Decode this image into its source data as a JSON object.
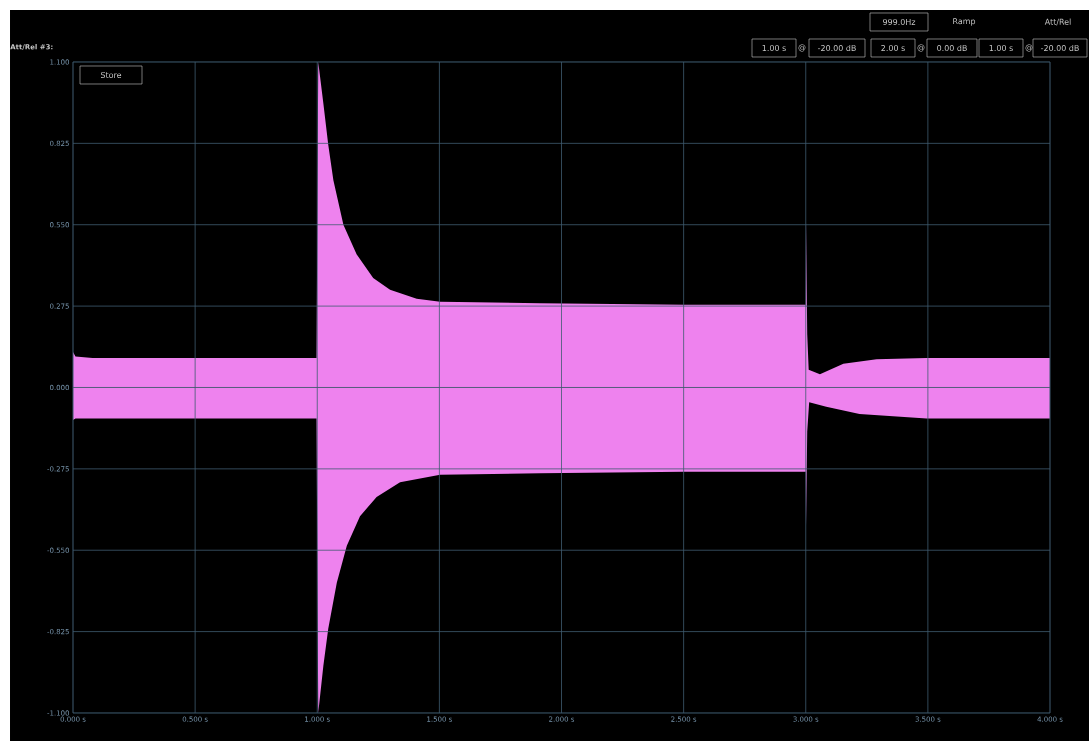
{
  "chart_data": {
    "type": "area",
    "series": [
      {
        "color": "#ee82ee",
        "x": [
          0,
          0.01,
          0.08,
          0.997,
          1.004,
          1.025,
          1.045,
          1.066,
          1.107,
          1.161,
          1.229,
          1.298,
          1.407,
          1.503,
          1.912,
          2.5,
          3.0,
          3.001,
          3.006,
          3.012,
          3.058,
          3.154,
          3.29,
          3.495,
          4.0
        ],
        "values": [
          0.12,
          0.105,
          0.1,
          0.1,
          1.1,
          0.96,
          0.82,
          0.7,
          0.55,
          0.45,
          0.37,
          0.33,
          0.3,
          0.29,
          0.285,
          0.28,
          0.28,
          0.56,
          0.18,
          0.06,
          0.045,
          0.08,
          0.095,
          0.1,
          0.1
        ]
      },
      {
        "color": "#ee82ee",
        "x": [
          0,
          0.01,
          0.997,
          1.004,
          1.025,
          1.045,
          1.08,
          1.121,
          1.175,
          1.243,
          1.339,
          1.503,
          1.912,
          2.5,
          3.0,
          3.001,
          3.006,
          3.014,
          3.084,
          3.22,
          3.495,
          4.0
        ],
        "values": [
          -0.11,
          -0.105,
          -0.105,
          -1.1,
          -0.94,
          -0.815,
          -0.66,
          -0.535,
          -0.435,
          -0.37,
          -0.32,
          -0.295,
          -0.29,
          -0.285,
          -0.285,
          -0.47,
          -0.15,
          -0.05,
          -0.065,
          -0.09,
          -0.105,
          -0.105
        ]
      }
    ],
    "xlim": [
      0,
      4.0
    ],
    "ylim": [
      -1.1,
      1.1
    ],
    "xticks": [
      {
        "value": 0,
        "label": "0.000 s"
      },
      {
        "value": 0.5,
        "label": "0.500 s"
      },
      {
        "value": 1.0,
        "label": "1.000 s"
      },
      {
        "value": 1.5,
        "label": "1.500 s"
      },
      {
        "value": 2.0,
        "label": "2.000 s"
      },
      {
        "value": 2.5,
        "label": "2.500 s"
      },
      {
        "value": 3.0,
        "label": "3.000 s"
      },
      {
        "value": 3.5,
        "label": "3.500 s"
      },
      {
        "value": 4.0,
        "label": "4.000 s"
      }
    ],
    "yticks": [
      {
        "value": -1.1,
        "label": "-1.100"
      },
      {
        "value": -0.825,
        "label": "-0.825"
      },
      {
        "value": -0.55,
        "label": "-0.550"
      },
      {
        "value": -0.275,
        "label": "-0.275"
      },
      {
        "value": 0,
        "label": "0.000"
      },
      {
        "value": 0.275,
        "label": "0.275"
      },
      {
        "value": 0.55,
        "label": "0.550"
      },
      {
        "value": 0.825,
        "label": "0.825"
      },
      {
        "value": 1.1,
        "label": "1.100"
      }
    ],
    "grid": true,
    "annotations": [
      "Att/Rel #3:",
      "Store",
      "999.0Hz",
      "Ramp",
      "Att/Rel",
      "1.00 s",
      "@",
      "-20.00 dB",
      "2.00 s",
      "@",
      "0.00 dB",
      "1.00 s",
      "@",
      "-20.00 dB"
    ]
  }
}
